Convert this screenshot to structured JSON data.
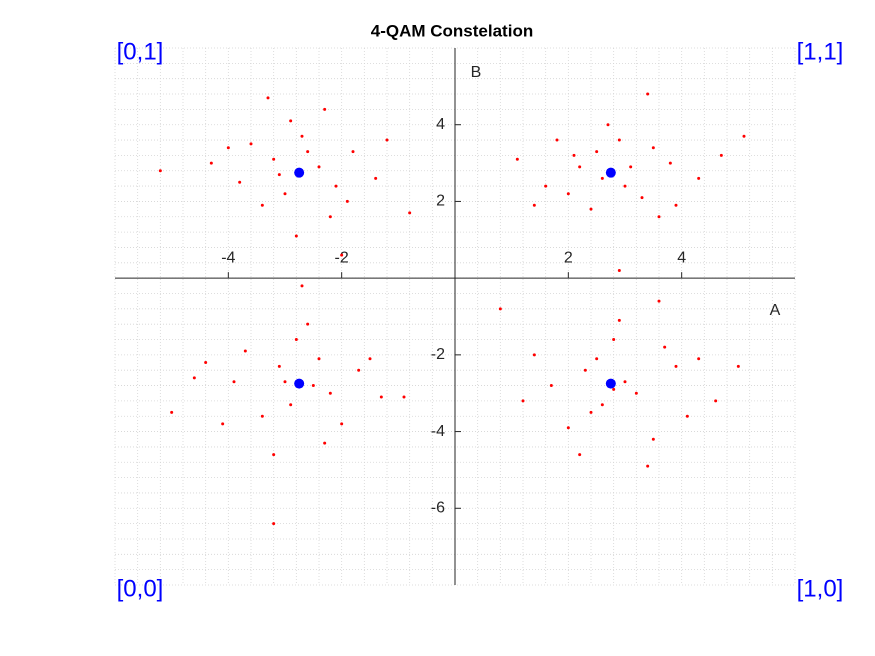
{
  "chart_data": {
    "type": "scatter",
    "title": "4-QAM Constelation",
    "x_label": "A",
    "y_label": "B",
    "annotations": [
      "[0,1]",
      "[1,1]",
      "[0,0]",
      "[1,0]"
    ],
    "annotation_color": "#0000ff",
    "xlim": [
      -6,
      6
    ],
    "ylim": [
      -8,
      6
    ],
    "xticks": [
      -4,
      -2,
      2,
      4
    ],
    "yticks": [
      -6,
      -4,
      -2,
      2,
      4
    ],
    "minor_grid": true,
    "series": [
      {
        "color": "#ff0000",
        "size": 1.5,
        "x": [
          2.1,
          3.3,
          2.9,
          1.6,
          3.8,
          2.4,
          3.1,
          2.2,
          4.3,
          1.1,
          2.7,
          3.5,
          2.0,
          3.9,
          2.5,
          3.0,
          4.7,
          1.8,
          3.4,
          2.9,
          5.1,
          3.6,
          1.4,
          2.6,
          -3.2,
          -2.1,
          -2.7,
          -3.8,
          -1.8,
          -3.4,
          -2.4,
          -3.0,
          -4.3,
          -1.4,
          -2.9,
          -2.2,
          -5.2,
          -3.6,
          -1.9,
          -2.6,
          -0.8,
          -3.3,
          -2.8,
          -4.0,
          -1.2,
          -3.1,
          -2.3,
          -2.0,
          -3.1,
          -2.2,
          -2.8,
          -3.9,
          -1.7,
          -3.4,
          -2.5,
          -2.9,
          -4.4,
          -1.3,
          -2.6,
          -3.2,
          -5.0,
          -2.0,
          -3.7,
          -2.4,
          -0.9,
          -3.2,
          -2.7,
          -4.1,
          -1.5,
          -3.0,
          -2.3,
          -4.6,
          2.3,
          3.2,
          2.8,
          1.7,
          3.9,
          2.4,
          3.0,
          2.6,
          4.3,
          1.2,
          2.9,
          3.5,
          5.0,
          2.0,
          3.7,
          2.5,
          0.8,
          3.4,
          3.6,
          4.1,
          1.4,
          2.8,
          2.2,
          4.6
        ],
        "y": [
          3.2,
          2.1,
          3.6,
          2.4,
          3.0,
          1.8,
          2.9,
          2.9,
          2.6,
          3.1,
          4.0,
          3.4,
          2.2,
          1.9,
          3.3,
          2.4,
          3.2,
          3.6,
          4.8,
          0.2,
          3.7,
          1.6,
          1.9,
          2.6,
          3.1,
          2.4,
          3.7,
          2.5,
          3.3,
          1.9,
          2.9,
          2.2,
          3.0,
          2.6,
          4.1,
          1.6,
          2.8,
          3.5,
          2.0,
          3.3,
          1.7,
          4.7,
          1.1,
          3.4,
          3.6,
          2.7,
          4.4,
          0.6,
          -2.3,
          -3.0,
          -1.6,
          -2.7,
          -2.4,
          -3.6,
          -2.8,
          -3.3,
          -2.2,
          -3.1,
          -1.2,
          -4.6,
          -3.5,
          -3.8,
          -1.9,
          -2.1,
          -3.1,
          -6.4,
          -0.2,
          -3.8,
          -2.1,
          -2.7,
          -4.3,
          -2.6,
          -2.4,
          -3.0,
          -1.6,
          -2.8,
          -2.3,
          -3.5,
          -2.7,
          -3.3,
          -2.1,
          -3.2,
          -1.1,
          -4.2,
          -2.3,
          -3.9,
          -1.8,
          -2.1,
          -0.8,
          -4.9,
          -0.6,
          -3.6,
          -2.0,
          -2.9,
          -4.6,
          -3.2
        ]
      },
      {
        "color": "#0000ff",
        "size": 5,
        "x": [
          2.75,
          -2.75,
          -2.75,
          2.75
        ],
        "y": [
          2.75,
          2.75,
          -2.75,
          -2.75
        ]
      }
    ]
  }
}
